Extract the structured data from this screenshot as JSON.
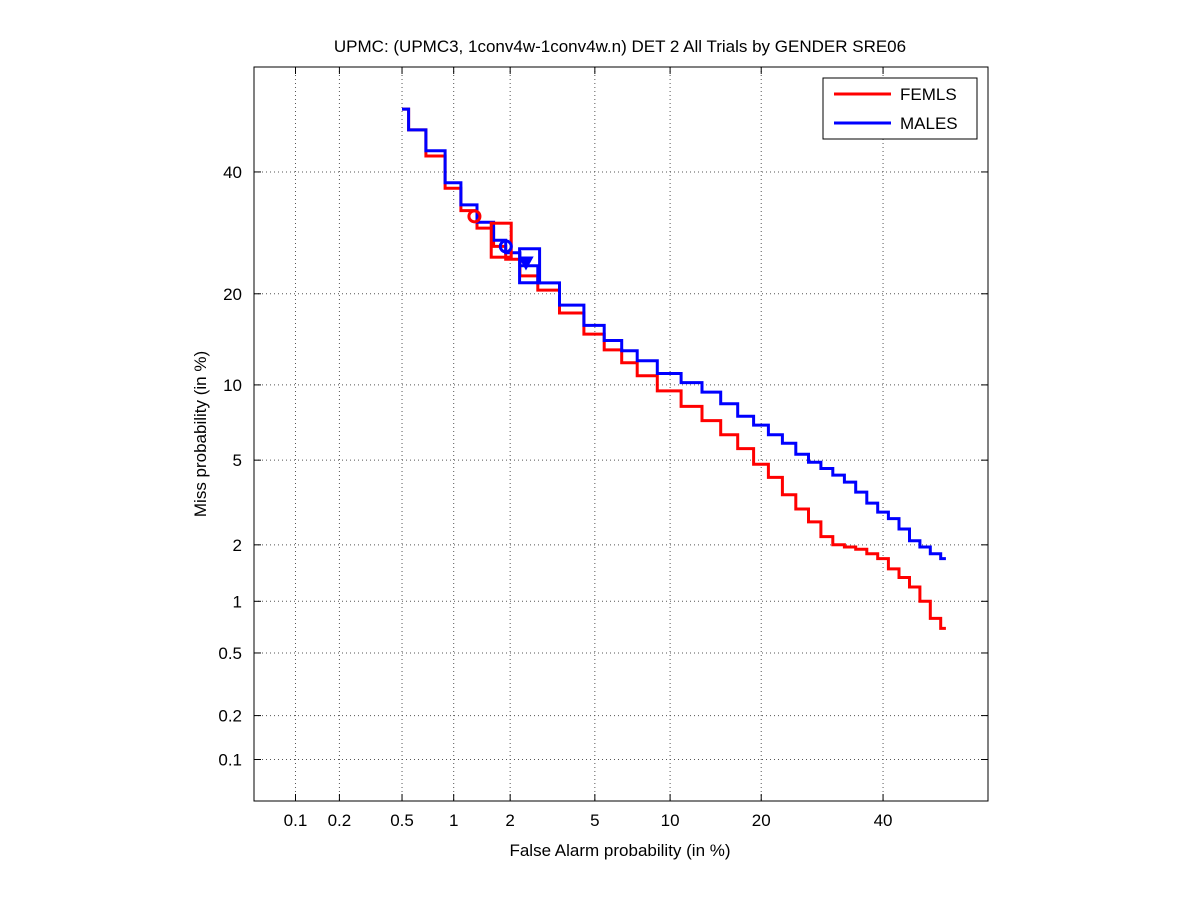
{
  "chart_data": {
    "type": "line",
    "title": "UPMC: (UPMC3, 1conv4w-1conv4w.n) DET 2 All Trials by GENDER SRE06",
    "xlabel": "False Alarm probability (in %)",
    "ylabel": "Miss probability (in %)",
    "x_scale": "normal-deviate",
    "y_scale": "normal-deviate",
    "xlim": [
      0.05,
      60
    ],
    "ylim": [
      0.05,
      60
    ],
    "x_ticks": [
      0.1,
      0.2,
      0.5,
      1,
      2,
      5,
      10,
      20,
      40
    ],
    "x_tick_labels": [
      "0.1",
      "0.2",
      "0.5",
      "1",
      "2",
      "5",
      "10",
      "20",
      "40"
    ],
    "y_ticks": [
      0.1,
      0.2,
      0.5,
      1,
      2,
      5,
      10,
      20,
      40
    ],
    "y_tick_labels": [
      "0.1",
      "0.2",
      "0.5",
      "1",
      "2",
      "5",
      "10",
      "20",
      "40"
    ],
    "grid": true,
    "legend_position": "top-right",
    "series": [
      {
        "name": "FEMLS",
        "color": "#ff0000",
        "x": [
          0.5,
          0.6,
          0.8,
          1.0,
          1.2,
          1.5,
          1.8,
          2.0,
          2.5,
          3.0,
          4.0,
          5.0,
          6.0,
          7.0,
          8.0,
          10.0,
          12.0,
          14.0,
          16.0,
          18.0,
          20.0,
          22.0,
          24.0,
          26.0,
          28.0,
          30.0,
          32.0,
          34.0,
          36.0,
          38.0,
          40.0,
          42.0,
          44.0,
          46.0,
          48.0,
          50.0,
          52.0
        ],
        "y": [
          52,
          48,
          43,
          37,
          33,
          30,
          27,
          25,
          22.5,
          20.5,
          17.5,
          15.0,
          13.3,
          12.0,
          10.8,
          9.5,
          8.3,
          7.3,
          6.4,
          5.6,
          4.8,
          4.2,
          3.5,
          3.0,
          2.6,
          2.2,
          2.0,
          1.95,
          1.9,
          1.8,
          1.7,
          1.5,
          1.35,
          1.2,
          1.0,
          0.8,
          0.7
        ]
      },
      {
        "name": "MALES",
        "color": "#0000ff",
        "x": [
          0.5,
          0.6,
          0.8,
          1.0,
          1.2,
          1.5,
          1.8,
          2.0,
          2.5,
          3.0,
          4.0,
          5.0,
          6.0,
          7.0,
          8.0,
          10.0,
          12.0,
          14.0,
          16.0,
          18.0,
          20.0,
          22.0,
          24.0,
          26.0,
          28.0,
          30.0,
          32.0,
          34.0,
          36.0,
          38.0,
          40.0,
          42.0,
          44.0,
          46.0,
          48.0,
          50.0,
          52.0
        ],
        "y": [
          52,
          48,
          44,
          38,
          34,
          31,
          28,
          26,
          24,
          21.5,
          18.5,
          16.0,
          14.3,
          13.2,
          12.2,
          11.0,
          10.2,
          9.4,
          8.5,
          7.6,
          7.0,
          6.4,
          5.9,
          5.3,
          4.9,
          4.6,
          4.3,
          4.0,
          3.6,
          3.2,
          2.9,
          2.7,
          2.4,
          2.1,
          1.95,
          1.8,
          1.7
        ]
      }
    ],
    "markers": [
      {
        "series": "FEMLS",
        "shape": "circle",
        "x": 1.3,
        "y": 32,
        "color": "#ff0000"
      },
      {
        "series": "FEMLS",
        "shape": "square",
        "x": 1.8,
        "y": 28,
        "color": "#ff0000"
      },
      {
        "series": "MALES",
        "shape": "circle",
        "x": 1.9,
        "y": 27,
        "color": "#0000ff"
      },
      {
        "series": "MALES",
        "shape": "square",
        "x": 2.5,
        "y": 24,
        "color": "#0000ff"
      },
      {
        "series": "MALES",
        "shape": "triangle",
        "x": 2.4,
        "y": 24.5,
        "color": "#0000ff"
      }
    ]
  }
}
